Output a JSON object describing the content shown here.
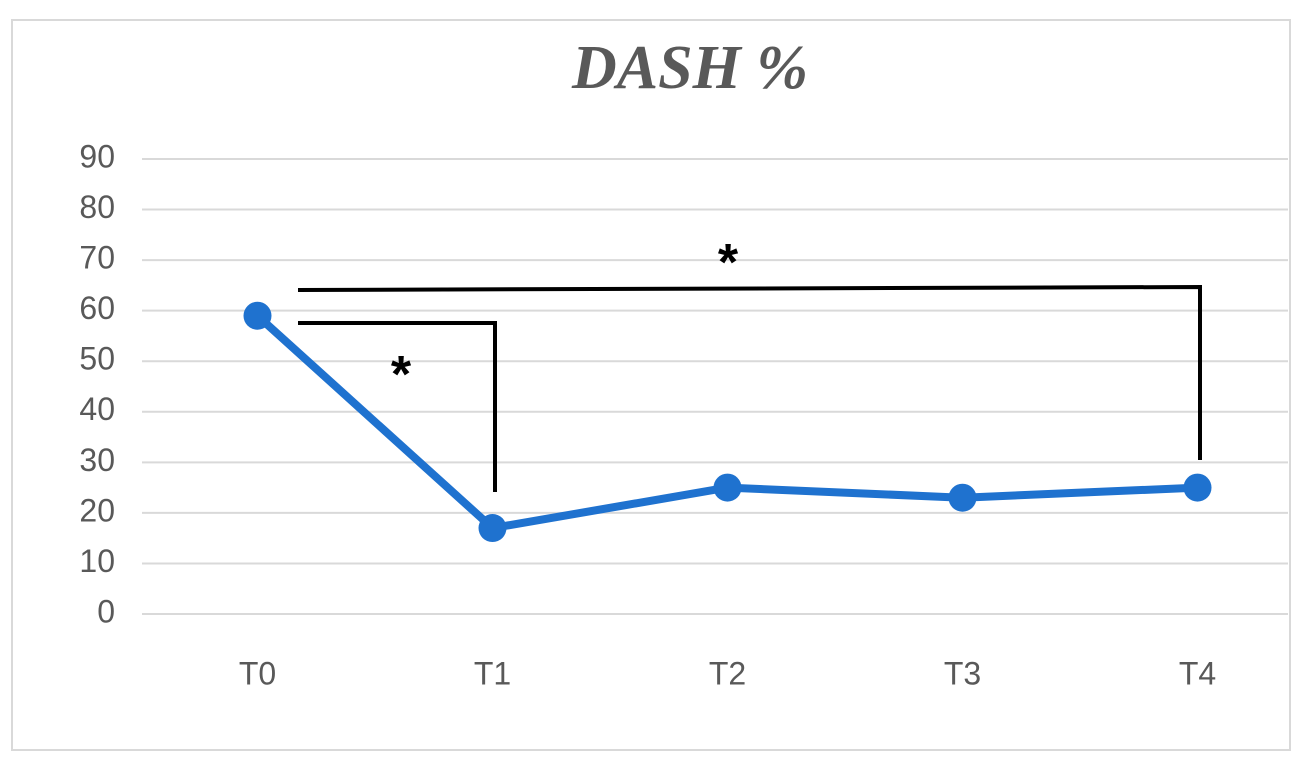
{
  "chart_data": {
    "type": "line",
    "title": "DASH %",
    "categories": [
      "T0",
      "T1",
      "T2",
      "T3",
      "T4"
    ],
    "series": [
      {
        "name": null,
        "color": "#1f72cf",
        "values": [
          59,
          17,
          25,
          23,
          25
        ]
      }
    ],
    "ylim": [
      0,
      90
    ],
    "yticks": [
      0,
      10,
      20,
      30,
      40,
      50,
      60,
      70,
      80,
      90
    ],
    "grid": true,
    "annotations": [
      {
        "text": "*"
      },
      {
        "text": "*"
      }
    ]
  }
}
